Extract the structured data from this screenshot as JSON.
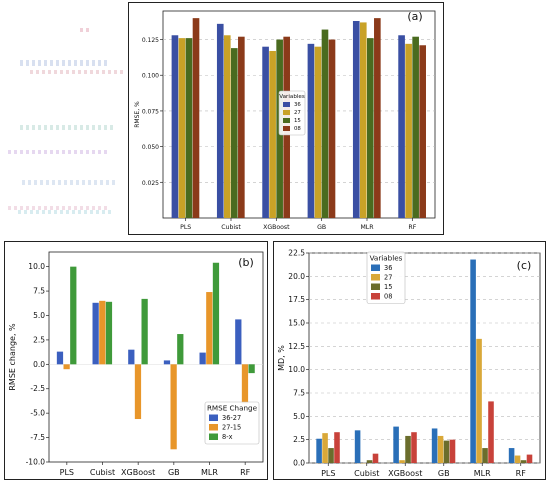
{
  "chart_data": [
    {
      "panel_label": "(a)",
      "type": "bar",
      "title": "",
      "xlabel": "",
      "ylabel": "RMSE, %",
      "categories": [
        "PLS",
        "Cubist",
        "XGBoost",
        "GB",
        "MLR",
        "RF"
      ],
      "ylim": [
        0,
        0.145
      ],
      "yticks": [
        "0.025",
        "0.050",
        "0.075",
        "0.100",
        "0.125"
      ],
      "grid": "horizontal dashed",
      "legend_title": "Variables",
      "legend_position": "center",
      "series": [
        {
          "name": "36",
          "color": "#3a4fa3",
          "values": [
            0.128,
            0.136,
            0.12,
            0.122,
            0.138,
            0.128
          ]
        },
        {
          "name": "27",
          "color": "#c9a227",
          "values": [
            0.126,
            0.128,
            0.117,
            0.12,
            0.137,
            0.122
          ]
        },
        {
          "name": "15",
          "color": "#4a6b1f",
          "values": [
            0.126,
            0.119,
            0.125,
            0.132,
            0.126,
            0.127
          ]
        },
        {
          "name": "08",
          "color": "#8b3a1a",
          "values": [
            0.14,
            0.127,
            0.127,
            0.125,
            0.14,
            0.121
          ]
        }
      ]
    },
    {
      "panel_label": "(b)",
      "type": "bar",
      "title": "",
      "xlabel": "",
      "ylabel": "RMSE change, %",
      "categories": [
        "PLS",
        "Cubist",
        "XGBoost",
        "GB",
        "MLR",
        "RF"
      ],
      "ylim": [
        -10,
        11.5
      ],
      "yticks": [
        "-10.0",
        "-7.5",
        "-5.0",
        "-2.5",
        "0.0",
        "2.5",
        "5.0",
        "7.5",
        "10.0"
      ],
      "grid": "none",
      "legend_title": "RMSE Change",
      "legend_position": "bottom-right",
      "series": [
        {
          "name": "36-27",
          "color": "#3b5fbf",
          "values": [
            1.3,
            6.3,
            1.5,
            0.4,
            1.2,
            4.6
          ]
        },
        {
          "name": "27-15",
          "color": "#e8962a",
          "values": [
            -0.5,
            6.5,
            -5.6,
            -8.7,
            7.4,
            -4.0
          ]
        },
        {
          "name": "8-x",
          "color": "#3f9a3a",
          "values": [
            10.0,
            6.4,
            6.7,
            3.1,
            10.4,
            -0.9
          ]
        }
      ]
    },
    {
      "panel_label": "(c)",
      "type": "bar",
      "title": "",
      "xlabel": "",
      "ylabel": "MD, %",
      "categories": [
        "PLS",
        "Cubist",
        "XGBoost",
        "GB",
        "MLR",
        "RF"
      ],
      "ylim": [
        0,
        22.5
      ],
      "yticks": [
        "0.0",
        "2.5",
        "5.0",
        "7.5",
        "10.0",
        "12.5",
        "15.0",
        "17.5",
        "20.0",
        "22.5"
      ],
      "grid": "horizontal dashed",
      "legend_title": "Variables",
      "legend_position": "top-right",
      "series": [
        {
          "name": "36",
          "color": "#2a6fb8",
          "values": [
            2.6,
            3.5,
            3.9,
            3.7,
            21.8,
            1.6
          ]
        },
        {
          "name": "27",
          "color": "#d9a838",
          "values": [
            3.2,
            0.0,
            0.3,
            2.9,
            13.3,
            0.8
          ]
        },
        {
          "name": "15",
          "color": "#6b6d2c",
          "values": [
            1.6,
            0.3,
            2.9,
            2.4,
            1.6,
            0.3
          ]
        },
        {
          "name": "08",
          "color": "#c8423a",
          "values": [
            3.3,
            1.0,
            3.3,
            2.5,
            6.6,
            0.9
          ]
        }
      ]
    }
  ]
}
